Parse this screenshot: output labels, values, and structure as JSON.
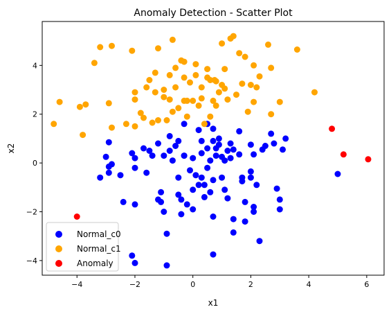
{
  "chart_data": {
    "type": "scatter",
    "title": "Anomaly Detection - Scatter Plot",
    "xlabel": "x1",
    "ylabel": "x2",
    "xlim": [
      -5.2,
      6.6
    ],
    "ylim": [
      -4.6,
      5.8
    ],
    "xticks": [
      "−4",
      "−2",
      "0",
      "2",
      "4",
      "6"
    ],
    "xtick_values": [
      -4,
      -2,
      0,
      2,
      4,
      6
    ],
    "yticks": [
      "−4",
      "−2",
      "0",
      "2",
      "4"
    ],
    "ytick_values": [
      -4,
      -2,
      0,
      2,
      4
    ],
    "grid": false,
    "legend_position": "lower-left",
    "series": [
      {
        "name": "Normal_c0",
        "color": "#0000ff",
        "points": [
          [
            -3.2,
            -0.6
          ],
          [
            -2.9,
            0.85
          ],
          [
            -2.9,
            -0.4
          ],
          [
            -3.0,
            0.25
          ],
          [
            -2.8,
            -0.05
          ],
          [
            -2.9,
            -0.15
          ],
          [
            -2.5,
            -0.5
          ],
          [
            -2.4,
            -1.6
          ],
          [
            -2.0,
            -1.7
          ],
          [
            -2.1,
            0.4
          ],
          [
            -2.0,
            -0.2
          ],
          [
            -2.0,
            0.2
          ],
          [
            -2.0,
            -4.1
          ],
          [
            -2.1,
            -3.8
          ],
          [
            -1.7,
            0.6
          ],
          [
            -1.6,
            -0.4
          ],
          [
            -1.5,
            0.5
          ],
          [
            -1.4,
            0.3
          ],
          [
            -1.2,
            0.8
          ],
          [
            -1.2,
            -1.5
          ],
          [
            -1.1,
            -1.2
          ],
          [
            -1.1,
            -1.6
          ],
          [
            -1.0,
            0.3
          ],
          [
            -1.0,
            -2.0
          ],
          [
            -0.9,
            -2.9
          ],
          [
            -0.9,
            -4.2
          ],
          [
            -0.8,
            1.1
          ],
          [
            -0.8,
            0.5
          ],
          [
            -0.7,
            0.1
          ],
          [
            -0.6,
            0.7
          ],
          [
            -0.5,
            0.9
          ],
          [
            -0.5,
            -0.6
          ],
          [
            -0.5,
            -1.3
          ],
          [
            -0.4,
            -2.1
          ],
          [
            -0.4,
            -1.5
          ],
          [
            -0.3,
            0.3
          ],
          [
            -0.3,
            1.6
          ],
          [
            -0.2,
            -1.7
          ],
          [
            -0.1,
            -0.3
          ],
          [
            0.0,
            0.2
          ],
          [
            0.0,
            -1.1
          ],
          [
            0.0,
            -1.9
          ],
          [
            0.1,
            -0.5
          ],
          [
            0.2,
            1.35
          ],
          [
            0.2,
            -0.9
          ],
          [
            0.3,
            0.4
          ],
          [
            0.3,
            0.9
          ],
          [
            0.3,
            -0.6
          ],
          [
            0.4,
            -0.9
          ],
          [
            0.4,
            -1.4
          ],
          [
            0.5,
            0.6
          ],
          [
            0.5,
            1.6
          ],
          [
            0.5,
            -0.2
          ],
          [
            0.6,
            0.1
          ],
          [
            0.6,
            -1.2
          ],
          [
            0.7,
            0.9
          ],
          [
            0.7,
            1.4
          ],
          [
            0.7,
            -0.7
          ],
          [
            0.7,
            -2.2
          ],
          [
            0.7,
            -3.75
          ],
          [
            0.8,
            0.6
          ],
          [
            0.8,
            0.3
          ],
          [
            0.9,
            1.0
          ],
          [
            1.0,
            -0.6
          ],
          [
            1.0,
            0.25
          ],
          [
            1.1,
            0.1
          ],
          [
            1.1,
            -1.1
          ],
          [
            1.2,
            0.5
          ],
          [
            1.2,
            -1.45
          ],
          [
            1.3,
            0.2
          ],
          [
            1.3,
            0.8
          ],
          [
            1.4,
            -2.3
          ],
          [
            1.4,
            -2.85
          ],
          [
            1.6,
            1.3
          ],
          [
            1.6,
            0.35
          ],
          [
            1.7,
            -0.6
          ],
          [
            1.7,
            -0.75
          ],
          [
            1.8,
            -2.4
          ],
          [
            1.8,
            -1.6
          ],
          [
            2.0,
            0.75
          ],
          [
            2.0,
            -0.35
          ],
          [
            2.0,
            -0.6
          ],
          [
            2.1,
            -1.8
          ],
          [
            2.1,
            -2.0
          ],
          [
            2.2,
            -0.9
          ],
          [
            2.3,
            -3.2
          ],
          [
            2.4,
            0.55
          ],
          [
            2.5,
            0.7
          ],
          [
            2.7,
            1.2
          ],
          [
            2.8,
            0.8
          ],
          [
            2.9,
            -1.05
          ],
          [
            3.0,
            -1.9
          ],
          [
            3.0,
            -1.5
          ],
          [
            3.1,
            0.55
          ],
          [
            3.2,
            1.0
          ],
          [
            5.0,
            -0.45
          ],
          [
            -0.3,
            0.3
          ],
          [
            0.9,
            0.75
          ],
          [
            1.4,
            0.55
          ],
          [
            2.1,
            0.35
          ]
        ]
      },
      {
        "name": "Normal_c1",
        "color": "#ffa500",
        "points": [
          [
            -4.8,
            1.6
          ],
          [
            -4.6,
            2.5
          ],
          [
            -3.9,
            2.3
          ],
          [
            -3.7,
            2.4
          ],
          [
            -3.8,
            1.15
          ],
          [
            -3.4,
            4.1
          ],
          [
            -3.2,
            4.75
          ],
          [
            -2.8,
            4.8
          ],
          [
            -2.9,
            2.45
          ],
          [
            -2.8,
            1.45
          ],
          [
            -2.3,
            1.6
          ],
          [
            -2.1,
            4.6
          ],
          [
            -2.0,
            2.9
          ],
          [
            -2.0,
            2.6
          ],
          [
            -2.0,
            1.5
          ],
          [
            -1.8,
            2.05
          ],
          [
            -1.7,
            1.85
          ],
          [
            -1.6,
            3.1
          ],
          [
            -1.5,
            3.4
          ],
          [
            -1.4,
            1.65
          ],
          [
            -1.3,
            2.9
          ],
          [
            -1.2,
            1.75
          ],
          [
            -1.2,
            4.7
          ],
          [
            -1.0,
            2.7
          ],
          [
            -1.0,
            3.0
          ],
          [
            -0.9,
            1.75
          ],
          [
            -0.8,
            3.6
          ],
          [
            -0.8,
            2.6
          ],
          [
            -0.7,
            2.1
          ],
          [
            -0.7,
            5.05
          ],
          [
            -0.6,
            3.9
          ],
          [
            -0.5,
            2.25
          ],
          [
            -0.4,
            4.2
          ],
          [
            -0.3,
            3.5
          ],
          [
            -0.3,
            4.15
          ],
          [
            -0.3,
            2.55
          ],
          [
            -0.2,
            1.9
          ],
          [
            -0.1,
            3.3
          ],
          [
            0.0,
            2.55
          ],
          [
            0.1,
            3.6
          ],
          [
            0.1,
            4.05
          ],
          [
            0.2,
            2.35
          ],
          [
            0.3,
            3.1
          ],
          [
            0.3,
            2.65
          ],
          [
            0.4,
            1.6
          ],
          [
            0.5,
            3.85
          ],
          [
            0.6,
            3.4
          ],
          [
            0.6,
            1.9
          ],
          [
            0.7,
            2.55
          ],
          [
            0.8,
            2.35
          ],
          [
            0.8,
            3.35
          ],
          [
            0.9,
            2.9
          ],
          [
            1.0,
            3.2
          ],
          [
            1.0,
            4.9
          ],
          [
            1.1,
            3.85
          ],
          [
            1.2,
            2.6
          ],
          [
            1.3,
            5.1
          ],
          [
            1.4,
            5.2
          ],
          [
            1.5,
            2.8
          ],
          [
            1.6,
            4.5
          ],
          [
            1.7,
            3.25
          ],
          [
            1.8,
            4.35
          ],
          [
            1.9,
            2.1
          ],
          [
            2.0,
            3.2
          ],
          [
            2.1,
            2.5
          ],
          [
            2.1,
            4.0
          ],
          [
            2.3,
            3.55
          ],
          [
            2.6,
            4.85
          ],
          [
            2.7,
            2.0
          ],
          [
            2.7,
            3.9
          ],
          [
            3.0,
            2.5
          ],
          [
            3.6,
            4.65
          ],
          [
            4.2,
            2.9
          ],
          [
            -0.6,
            3.1
          ],
          [
            0.5,
            3.5
          ],
          [
            1.1,
            3.05
          ],
          [
            2.2,
            3.1
          ],
          [
            -1.3,
            3.7
          ],
          [
            0.75,
            3.4
          ],
          [
            -0.2,
            2.55
          ]
        ]
      },
      {
        "name": "Anomaly",
        "color": "#ff0000",
        "points": [
          [
            -4.0,
            -2.2
          ],
          [
            4.8,
            1.4
          ],
          [
            5.2,
            0.35
          ],
          [
            6.05,
            0.15
          ]
        ]
      }
    ]
  }
}
